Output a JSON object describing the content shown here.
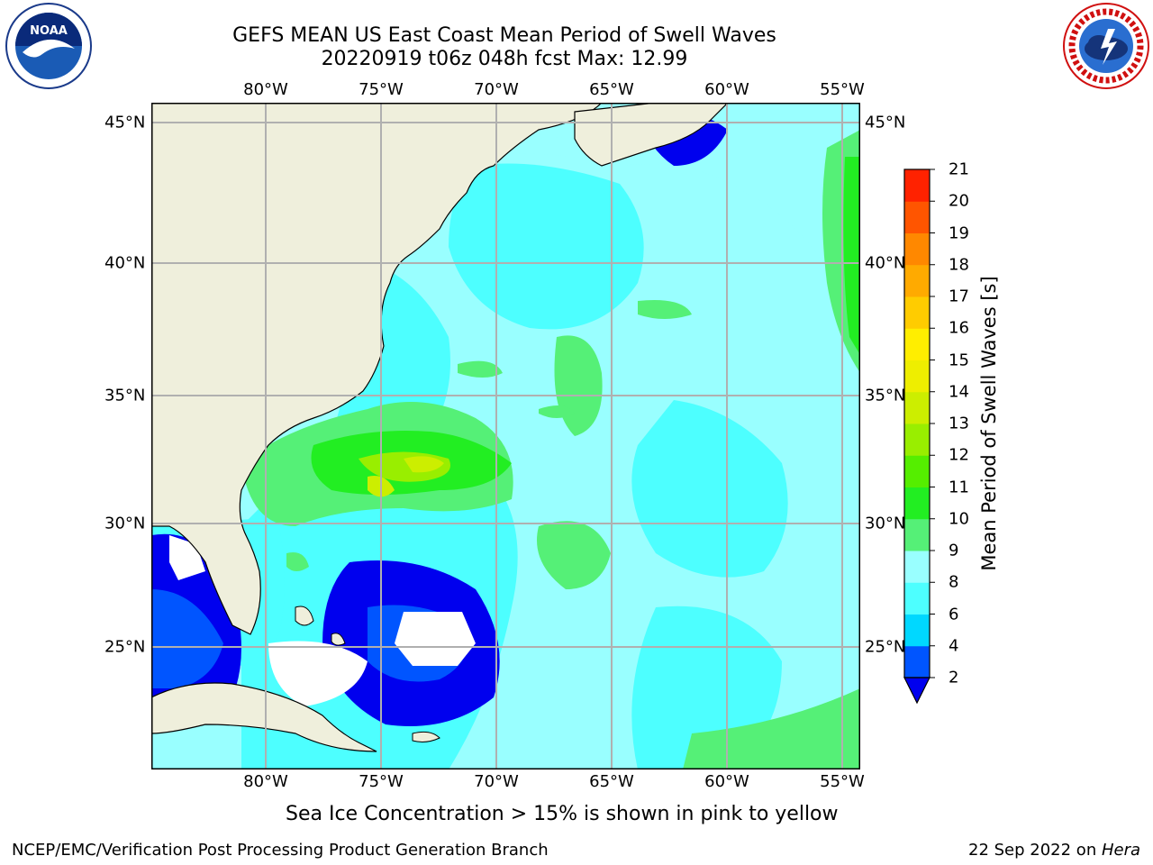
{
  "header": {
    "title_line1": "GEFS MEAN US East Coast Mean Period of Swell Waves",
    "title_line2": "20220919 t06z 048h fcst   Max: 12.99"
  },
  "logos": {
    "noaa_text": "NOAA",
    "noaa_ring_text": "NATIONAL OCEANIC AND ATMOSPHERIC ADMINISTRATION · U.S. DEPARTMENT OF COMMERCE",
    "nws_ring_text": "NATIONAL WEATHER SERVICE"
  },
  "map": {
    "lon_labels": [
      "80°W",
      "75°W",
      "70°W",
      "65°W",
      "60°W",
      "55°W"
    ],
    "lat_labels": [
      "45°N",
      "40°N",
      "35°N",
      "30°N",
      "25°N"
    ],
    "colors": {
      "land": "#efefdc",
      "grid": "#b0b0b0",
      "ocean_main": "#99ffff",
      "ocean_light": "#4dffff",
      "ocean_cyan": "#00ffff"
    }
  },
  "colorbar": {
    "label": "Mean Period of Swell Waves [s]",
    "ticks": [
      "2",
      "4",
      "6",
      "8",
      "9",
      "10",
      "11",
      "12",
      "13",
      "14",
      "15",
      "16",
      "17",
      "18",
      "19",
      "20",
      "21"
    ],
    "colors": [
      "#0055ff",
      "#00d8ff",
      "#4dffff",
      "#99ffff",
      "#55f077",
      "#22ee22",
      "#55ee00",
      "#99ee00",
      "#ccee00",
      "#eeee00",
      "#ffee00",
      "#ffcc00",
      "#ffaa00",
      "#ff8800",
      "#ff5500",
      "#ff2200"
    ],
    "under_color": "#0000ee"
  },
  "footnote": "Sea Ice Concentration > 15% is shown in pink to yellow",
  "footer": {
    "left": "NCEP/EMC/Verification Post Processing Product Generation Branch",
    "right_date": "22 Sep 2022 on ",
    "right_machine": "Hera"
  }
}
